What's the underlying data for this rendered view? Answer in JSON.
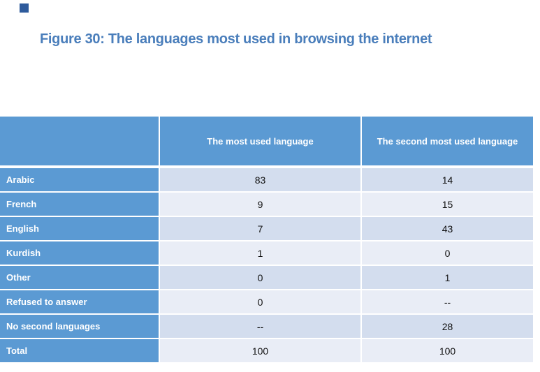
{
  "decor": {
    "corner_square_color": "#2E5B9C"
  },
  "title": {
    "text": "Figure 30: The languages most used in browsing the internet",
    "color": "#4A7EBB"
  },
  "table": {
    "header": {
      "col_most": "The most used language",
      "col_second": "The second most used language"
    },
    "colors": {
      "header_blue": "#5B9AD3",
      "label_blue": "#5B9AD3",
      "band_dark": "#D3DDEE",
      "band_light": "#E9EDF6",
      "grid_line": "#FFFFFF"
    },
    "rows": [
      {
        "label": "Arabic",
        "most": "83",
        "second": "14"
      },
      {
        "label": "French",
        "most": "9",
        "second": "15"
      },
      {
        "label": "English",
        "most": "7",
        "second": "43"
      },
      {
        "label": "Kurdish",
        "most": "1",
        "second": "0"
      },
      {
        "label": "Other",
        "most": "0",
        "second": "1"
      },
      {
        "label": "Refused to answer",
        "most": "0",
        "second": "--"
      },
      {
        "label": "No second languages",
        "most": "--",
        "second": "28"
      },
      {
        "label": "Total",
        "most": "100",
        "second": "100"
      }
    ]
  },
  "chart_data": {
    "type": "table",
    "title": "Figure 30: The languages most used in browsing the internet",
    "columns": [
      "",
      "The most used language",
      "The second most used language"
    ],
    "categories": [
      "Arabic",
      "French",
      "English",
      "Kurdish",
      "Other",
      "Refused to answer",
      "No second languages",
      "Total"
    ],
    "series": [
      {
        "name": "The most used language",
        "values": [
          "83",
          "9",
          "7",
          "1",
          "0",
          "0",
          "--",
          "100"
        ]
      },
      {
        "name": "The second most used language",
        "values": [
          "14",
          "15",
          "43",
          "0",
          "1",
          "--",
          "28",
          "100"
        ]
      }
    ]
  }
}
